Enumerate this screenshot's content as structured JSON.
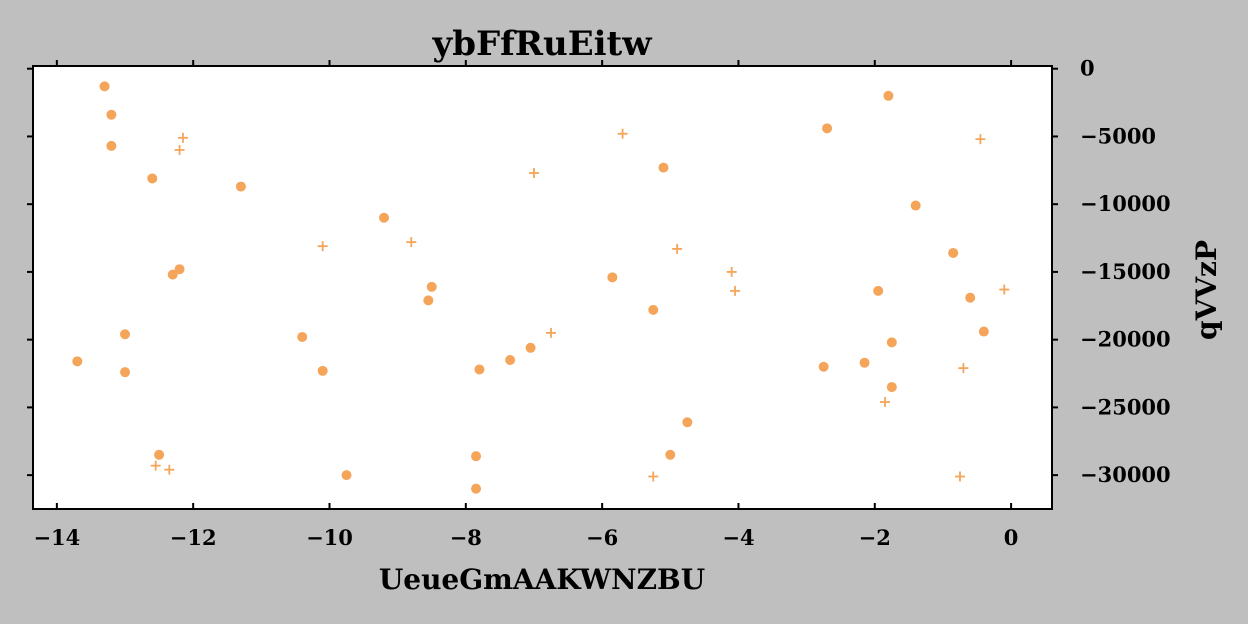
{
  "chart_data": {
    "type": "scatter",
    "title": "ybFfRuEitw",
    "xlabel": "UeueGmAAKWNZBU",
    "ylabel": "qVVzP",
    "xlim": [
      -14.35,
      0.6
    ],
    "ylim": [
      -32500,
      200
    ],
    "x_ticks": [
      -14,
      -12,
      -10,
      -8,
      -6,
      -4,
      -2,
      0
    ],
    "x_tick_labels": [
      "−14",
      "−12",
      "−10",
      "−8",
      "−6",
      "−4",
      "−2",
      "0"
    ],
    "y_ticks": [
      0,
      -5000,
      -10000,
      -15000,
      -20000,
      -25000,
      -30000
    ],
    "y_tick_labels": [
      "0",
      "−5000",
      "−10000",
      "−15000",
      "−20000",
      "−25000",
      "−30000"
    ],
    "y_axis_side": "right",
    "grid": false,
    "legend": "none",
    "marker_color": "#f5a55a",
    "series": [
      {
        "marker": "circle",
        "points": [
          [
            -13.3,
            -1300
          ],
          [
            -13.2,
            -3400
          ],
          [
            -13.2,
            -5700
          ],
          [
            -12.6,
            -8100
          ],
          [
            -11.3,
            -8700
          ],
          [
            -12.2,
            -14800
          ],
          [
            -12.3,
            -15200
          ],
          [
            -13.0,
            -19600
          ],
          [
            -13.7,
            -21600
          ],
          [
            -13.0,
            -22400
          ],
          [
            -12.5,
            -28500
          ],
          [
            -10.4,
            -19800
          ],
          [
            -10.1,
            -22300
          ],
          [
            -9.75,
            -30000
          ],
          [
            -9.2,
            -11000
          ],
          [
            -8.5,
            -16100
          ],
          [
            -8.55,
            -17100
          ],
          [
            -7.8,
            -22200
          ],
          [
            -7.85,
            -28600
          ],
          [
            -7.85,
            -31000
          ],
          [
            -7.35,
            -21500
          ],
          [
            -7.05,
            -20600
          ],
          [
            -5.85,
            -15400
          ],
          [
            -5.25,
            -17800
          ],
          [
            -5.1,
            -7300
          ],
          [
            -5.0,
            -28500
          ],
          [
            -4.75,
            -26100
          ],
          [
            -2.7,
            -4400
          ],
          [
            -2.75,
            -22000
          ],
          [
            -2.15,
            -21700
          ],
          [
            -1.95,
            -16400
          ],
          [
            -1.8,
            -2000
          ],
          [
            -1.75,
            -20200
          ],
          [
            -1.75,
            -23500
          ],
          [
            -1.4,
            -10100
          ],
          [
            -0.85,
            -13600
          ],
          [
            -0.6,
            -16900
          ],
          [
            -0.4,
            -19400
          ]
        ]
      },
      {
        "marker": "plus",
        "points": [
          [
            -12.15,
            -5100
          ],
          [
            -12.2,
            -6000
          ],
          [
            -12.55,
            -29300
          ],
          [
            -12.35,
            -29600
          ],
          [
            -10.1,
            -13100
          ],
          [
            -8.8,
            -12800
          ],
          [
            -6.75,
            -19500
          ],
          [
            -7.0,
            -7700
          ],
          [
            -5.7,
            -4800
          ],
          [
            -4.9,
            -13300
          ],
          [
            -5.25,
            -30100
          ],
          [
            -4.1,
            -15000
          ],
          [
            -4.05,
            -16400
          ],
          [
            -1.85,
            -24600
          ],
          [
            -0.7,
            -22100
          ],
          [
            -0.75,
            -30100
          ],
          [
            -0.45,
            -5200
          ],
          [
            -0.1,
            -16300
          ]
        ]
      }
    ]
  }
}
